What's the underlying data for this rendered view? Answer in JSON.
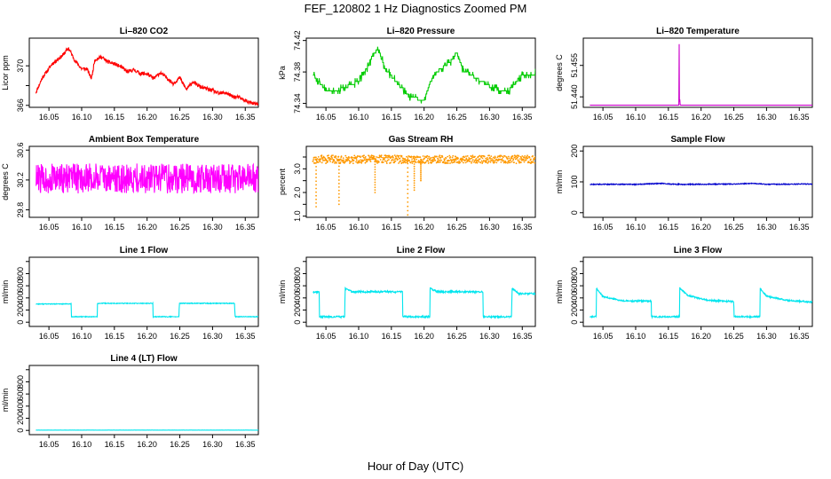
{
  "figure": {
    "title": "FEF_120802  1 Hz Diagnostics Zoomed PM",
    "xlabel": "Hour of Day (UTC)"
  },
  "chart_data": [
    {
      "id": "co2",
      "type": "line",
      "title": "Li–820 CO2",
      "ylabel": "Licor ppm",
      "color": "#ff0000",
      "xlim": [
        16.02,
        16.37
      ],
      "ylim": [
        365.8,
        372.8
      ],
      "yticks": [
        366,
        368,
        370
      ],
      "yticklabels": [
        "366",
        "",
        "370"
      ],
      "xticks": [
        16.05,
        16.1,
        16.15,
        16.2,
        16.25,
        16.3,
        16.35
      ],
      "xticklabels": [
        "16.05",
        "16.10",
        "16.15",
        "16.20",
        "16.25",
        "16.30",
        "16.35"
      ],
      "series": [
        {
          "name": "CO2",
          "x": [
            16.03,
            16.04,
            16.055,
            16.07,
            16.08,
            16.09,
            16.1,
            16.108,
            16.115,
            16.12,
            16.13,
            16.14,
            16.15,
            16.16,
            16.17,
            16.18,
            16.19,
            16.2,
            16.21,
            16.22,
            16.23,
            16.24,
            16.25,
            16.26,
            16.27,
            16.28,
            16.29,
            16.3,
            16.31,
            16.32,
            16.33,
            16.34,
            16.35,
            16.36,
            16.37
          ],
          "y": [
            367.3,
            368.8,
            370.2,
            371.0,
            371.8,
            370.5,
            369.7,
            369.7,
            368.7,
            370.6,
            370.9,
            370.4,
            370.2,
            369.9,
            369.4,
            369.6,
            369.2,
            369.2,
            368.7,
            369.3,
            368.8,
            368.2,
            368.8,
            367.6,
            368.4,
            367.9,
            367.7,
            367.5,
            367.2,
            367.3,
            366.9,
            366.8,
            366.5,
            366.2,
            366.1
          ]
        }
      ],
      "noise": 0.18,
      "seed": 11
    },
    {
      "id": "pressure",
      "type": "line",
      "title": "Li–820 Pressure",
      "ylabel": "kPa",
      "color": "#00cc00",
      "xlim": [
        16.02,
        16.37
      ],
      "ylim": [
        74.335,
        74.423
      ],
      "yticks": [
        74.34,
        74.38,
        74.42
      ],
      "yticklabels": [
        "74.34",
        "74.38",
        "74.42"
      ],
      "xticks": [
        16.05,
        16.1,
        16.15,
        16.2,
        16.25,
        16.3,
        16.35
      ],
      "xticklabels": [
        "16.05",
        "16.10",
        "16.15",
        "16.20",
        "16.25",
        "16.30",
        "16.35"
      ],
      "series": [
        {
          "name": "Pressure",
          "x": [
            16.03,
            16.04,
            16.05,
            16.07,
            16.1,
            16.115,
            16.125,
            16.13,
            16.14,
            16.16,
            16.18,
            16.2,
            16.21,
            16.22,
            16.24,
            16.25,
            16.26,
            16.28,
            16.3,
            16.32,
            16.33,
            16.34,
            16.35,
            16.37
          ],
          "y": [
            74.377,
            74.367,
            74.357,
            74.357,
            74.368,
            74.388,
            74.405,
            74.41,
            74.385,
            74.365,
            74.348,
            74.344,
            74.368,
            74.38,
            74.393,
            74.405,
            74.382,
            74.372,
            74.362,
            74.356,
            74.357,
            74.367,
            74.376,
            74.378
          ]
        }
      ],
      "noise": 0.0,
      "seed": 22
    },
    {
      "id": "licor-temp",
      "type": "line",
      "title": "Li–820 Temperature",
      "ylabel": "degrees C",
      "color": "#cc00cc",
      "xlim": [
        16.02,
        16.37
      ],
      "ylim": [
        51.435,
        51.468
      ],
      "yticks": [
        51.44,
        51.455
      ],
      "yticklabels": [
        "51.440",
        "51.455"
      ],
      "xticks": [
        16.05,
        16.1,
        16.15,
        16.2,
        16.25,
        16.3,
        16.35
      ],
      "xticklabels": [
        "16.05",
        "16.10",
        "16.15",
        "16.20",
        "16.25",
        "16.30",
        "16.35"
      ],
      "series": [
        {
          "name": "Temperature",
          "x": [
            16.03,
            16.166,
            16.1665,
            16.167,
            16.1675,
            16.168,
            16.37
          ],
          "y": [
            51.436,
            51.436,
            51.466,
            51.436,
            51.439,
            51.436,
            51.436
          ]
        }
      ],
      "noise": 0.0,
      "seed": 33
    },
    {
      "id": "ambient-temp",
      "type": "line",
      "title": "Ambient Box Temperature",
      "ylabel": "degrees C",
      "color": "#ff00ff",
      "xlim": [
        16.02,
        16.37
      ],
      "ylim": [
        29.7,
        30.65
      ],
      "yticks": [
        29.8,
        30.2,
        30.6
      ],
      "yticklabels": [
        "29.8",
        "30.2",
        "30.6"
      ],
      "xticks": [
        16.05,
        16.1,
        16.15,
        16.2,
        16.25,
        16.3,
        16.35
      ],
      "xticklabels": [
        "16.05",
        "16.10",
        "16.15",
        "16.20",
        "16.25",
        "16.30",
        "16.35"
      ],
      "series": [
        {
          "name": "Ambient",
          "x": [
            16.03,
            16.37
          ],
          "y": [
            30.22,
            30.22
          ]
        }
      ],
      "noise": 0.2,
      "seed": 44
    },
    {
      "id": "rh",
      "type": "scatter",
      "title": "Gas Stream RH",
      "ylabel": "percent",
      "color": "#ff9900",
      "xlim": [
        16.02,
        16.37
      ],
      "ylim": [
        0.95,
        3.95
      ],
      "yticks": [
        1.0,
        1.5,
        2.0,
        2.5,
        3.0,
        3.5
      ],
      "yticklabels": [
        "1.0",
        "",
        "2.0",
        "",
        "3.0",
        ""
      ],
      "xticks": [
        16.05,
        16.1,
        16.15,
        16.2,
        16.25,
        16.3,
        16.35
      ],
      "xticklabels": [
        "16.05",
        "16.10",
        "16.15",
        "16.20",
        "16.25",
        "16.30",
        "16.35"
      ],
      "series": [
        {
          "name": "RH",
          "x": [
            16.03,
            16.37
          ],
          "y": [
            3.4,
            3.4
          ]
        }
      ],
      "spikes": [
        {
          "x": 16.035,
          "y": 1.4
        },
        {
          "x": 16.07,
          "y": 1.5
        },
        {
          "x": 16.125,
          "y": 2.0
        },
        {
          "x": 16.175,
          "y": 1.05
        },
        {
          "x": 16.185,
          "y": 2.1
        },
        {
          "x": 16.195,
          "y": 2.5
        }
      ],
      "noise": 0.17,
      "seed": 55
    },
    {
      "id": "sample-flow",
      "type": "line",
      "title": "Sample Flow",
      "ylabel": "ml/min",
      "color": "#0000cc",
      "xlim": [
        16.02,
        16.37
      ],
      "ylim": [
        -15,
        215
      ],
      "yticks": [
        0,
        100,
        200
      ],
      "yticklabels": [
        "0",
        "100",
        "200"
      ],
      "xticks": [
        16.05,
        16.1,
        16.15,
        16.2,
        16.25,
        16.3,
        16.35
      ],
      "xticklabels": [
        "16.05",
        "16.10",
        "16.15",
        "16.20",
        "16.25",
        "16.30",
        "16.35"
      ],
      "series": [
        {
          "name": "Sample",
          "x": [
            16.03,
            16.1,
            16.14,
            16.16,
            16.2,
            16.25,
            16.28,
            16.3,
            16.37
          ],
          "y": [
            92,
            92,
            95,
            92,
            92,
            93,
            95,
            92,
            93
          ]
        }
      ],
      "noise": 1.5,
      "seed": 66
    },
    {
      "id": "line1",
      "type": "line",
      "title": "Line 1 Flow",
      "ylabel": "ml/min",
      "color": "#00e5ee",
      "xlim": [
        16.02,
        16.37
      ],
      "ylim": [
        -70,
        1070
      ],
      "yticks": [
        0,
        200,
        400,
        600,
        800,
        1000
      ],
      "yticklabels": [
        "0",
        "200",
        "400",
        "600",
        "800",
        ""
      ],
      "xticks": [
        16.05,
        16.1,
        16.15,
        16.2,
        16.25,
        16.3,
        16.35
      ],
      "xticklabels": [
        "16.05",
        "16.10",
        "16.15",
        "16.20",
        "16.25",
        "16.30",
        "16.35"
      ],
      "series": [
        {
          "name": "Line 1",
          "x": [
            16.03,
            16.084,
            16.0841,
            16.124,
            16.1241,
            16.209,
            16.2091,
            16.249,
            16.2491,
            16.334,
            16.3341,
            16.37
          ],
          "y": [
            300,
            300,
            90,
            90,
            310,
            310,
            90,
            90,
            310,
            310,
            90,
            90
          ]
        }
      ],
      "noise": 6,
      "seed": 77
    },
    {
      "id": "line2",
      "type": "line",
      "title": "Line 2 Flow",
      "ylabel": "ml/min",
      "color": "#00e5ee",
      "xlim": [
        16.02,
        16.37
      ],
      "ylim": [
        -70,
        1070
      ],
      "yticks": [
        0,
        200,
        400,
        600,
        800,
        1000
      ],
      "yticklabels": [
        "0",
        "200",
        "400",
        "600",
        "800",
        ""
      ],
      "xticks": [
        16.05,
        16.1,
        16.15,
        16.2,
        16.25,
        16.3,
        16.35
      ],
      "xticklabels": [
        "16.05",
        "16.10",
        "16.15",
        "16.20",
        "16.25",
        "16.30",
        "16.35"
      ],
      "series": [
        {
          "name": "Line 2",
          "x": [
            16.03,
            16.04,
            16.0401,
            16.079,
            16.0791,
            16.09,
            16.167,
            16.1671,
            16.209,
            16.2091,
            16.22,
            16.29,
            16.2901,
            16.334,
            16.3341,
            16.345,
            16.37
          ],
          "y": [
            500,
            500,
            90,
            90,
            560,
            500,
            500,
            90,
            90,
            560,
            500,
            500,
            90,
            90,
            560,
            470,
            470
          ]
        }
      ],
      "noise": 14,
      "seed": 88
    },
    {
      "id": "line3",
      "type": "line",
      "title": "Line 3 Flow",
      "ylabel": "ml/min",
      "color": "#00e5ee",
      "xlim": [
        16.02,
        16.37
      ],
      "ylim": [
        -70,
        1070
      ],
      "yticks": [
        0,
        200,
        400,
        600,
        800,
        1000
      ],
      "yticklabels": [
        "0",
        "200",
        "400",
        "600",
        "800",
        ""
      ],
      "xticks": [
        16.05,
        16.1,
        16.15,
        16.2,
        16.25,
        16.3,
        16.35
      ],
      "xticklabels": [
        "16.05",
        "16.10",
        "16.15",
        "16.20",
        "16.25",
        "16.30",
        "16.35"
      ],
      "series": [
        {
          "name": "Line 3",
          "x": [
            16.03,
            16.04,
            16.0401,
            16.05,
            16.08,
            16.124,
            16.1241,
            16.167,
            16.1671,
            16.18,
            16.21,
            16.25,
            16.2501,
            16.29,
            16.2901,
            16.3,
            16.33,
            16.37
          ],
          "y": [
            90,
            90,
            560,
            420,
            350,
            350,
            90,
            90,
            570,
            440,
            360,
            340,
            90,
            90,
            560,
            430,
            360,
            330
          ]
        }
      ],
      "noise": 12,
      "seed": 99
    },
    {
      "id": "line4",
      "type": "line",
      "title": "Line 4 (LT) Flow",
      "ylabel": "ml/min",
      "color": "#00e5ee",
      "xlim": [
        16.02,
        16.37
      ],
      "ylim": [
        -70,
        1070
      ],
      "yticks": [
        0,
        200,
        400,
        600,
        800,
        1000
      ],
      "yticklabels": [
        "0",
        "200",
        "400",
        "600",
        "800",
        ""
      ],
      "xticks": [
        16.05,
        16.1,
        16.15,
        16.2,
        16.25,
        16.3,
        16.35
      ],
      "xticklabels": [
        "16.05",
        "16.10",
        "16.15",
        "16.20",
        "16.25",
        "16.30",
        "16.35"
      ],
      "series": [
        {
          "name": "Line 4",
          "x": [
            16.03,
            16.37
          ],
          "y": [
            5,
            5
          ]
        }
      ],
      "noise": 1,
      "seed": 111
    }
  ]
}
